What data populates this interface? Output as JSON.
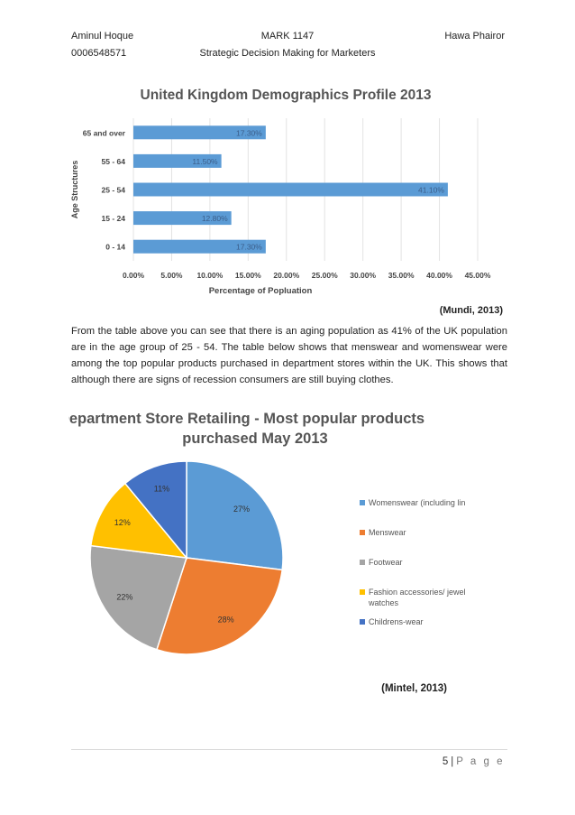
{
  "header": {
    "author": "Aminul Hoque",
    "student_id": "0006548571",
    "course_code": "MARK 1147",
    "course_title": "Strategic Decision Making for Marketers",
    "partner": "Hawa Phairor"
  },
  "chart1": {
    "type": "bar",
    "orientation": "horizontal",
    "title": "United Kingdom Demographics Profile 2013",
    "xlabel": "Percentage of Popluation",
    "ylabel": "Age Structures",
    "categories": [
      "65 and over",
      "55 - 64",
      "25 - 54",
      "15 - 24",
      "0 - 14"
    ],
    "values": [
      17.3,
      11.5,
      41.1,
      12.8,
      17.3
    ],
    "value_labels": [
      "17.30%",
      "11.50%",
      "41.10%",
      "12.80%",
      "17.30%"
    ],
    "xlim": [
      0,
      45
    ],
    "xticks": [
      0,
      5,
      10,
      15,
      20,
      25,
      30,
      35,
      40,
      45
    ],
    "xtick_labels": [
      "0.00%",
      "5.00%",
      "10.00%",
      "15.00%",
      "20.00%",
      "25.00%",
      "30.00%",
      "35.00%",
      "40.00%",
      "45.00%"
    ],
    "grid": true,
    "bar_color": "#5b9bd5",
    "source": "(Mundi, 2013)"
  },
  "paragraph": "From the table above you can see that there is an aging population as 41% of the UK population are in the age group of 25 - 54. The table below shows that menswear and womenswear were among the top popular products purchased in department stores within the UK. This shows that although there are signs of recession consumers are still buying clothes.",
  "chart2": {
    "type": "pie",
    "title_line1": "Department Store Retailing - Most popular products",
    "title_line2": "purchased May 2013",
    "slices": [
      {
        "name": "Womenswear (including lingerie)",
        "value": 27,
        "label": "27%",
        "color": "#5b9bd5"
      },
      {
        "name": "Menswear",
        "value": 28,
        "label": "28%",
        "color": "#ed7d31"
      },
      {
        "name": "Footwear",
        "value": 22,
        "label": "22%",
        "color": "#a5a5a5"
      },
      {
        "name": "Fashion accessories/ jewellery & watches",
        "value": 12,
        "label": "12%",
        "color": "#ffc000"
      },
      {
        "name": "Childrens-wear",
        "value": 11,
        "label": "11%",
        "color": "#4472c4"
      }
    ],
    "legend_placement": "right",
    "source": "(Mintel, 2013)"
  },
  "footer": {
    "page_number": "5",
    "separator": "|",
    "page_word": "P a g e"
  }
}
